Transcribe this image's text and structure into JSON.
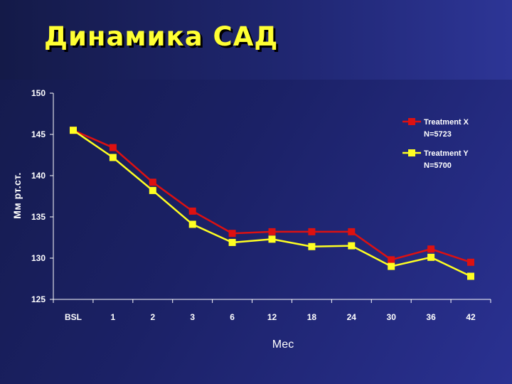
{
  "slide": {
    "title": "Динамика САД"
  },
  "chart_data": {
    "type": "line",
    "title": "",
    "xlabel": "Мес",
    "ylabel": "Мм рт.ст.",
    "categories": [
      "BSL",
      "1",
      "2",
      "3",
      "6",
      "12",
      "18",
      "24",
      "30",
      "36",
      "42"
    ],
    "ylim": [
      125,
      150
    ],
    "yticks": [
      125,
      130,
      135,
      140,
      145,
      150
    ],
    "grid": false,
    "legend_position": "top-right",
    "series": [
      {
        "name": "Treatment X",
        "n_label": "N=5723",
        "color": "#dd1111",
        "marker_color": "#dd1111",
        "values": [
          145.5,
          143.4,
          139.2,
          135.7,
          133.0,
          133.2,
          133.2,
          133.2,
          129.8,
          131.1,
          129.5
        ]
      },
      {
        "name": "Treatment Y",
        "n_label": "N=5700",
        "color": "#ffff22",
        "marker_color": "#ffff22",
        "values": [
          145.5,
          142.2,
          138.2,
          134.1,
          131.9,
          132.3,
          131.4,
          131.5,
          129.0,
          130.1,
          127.8
        ]
      }
    ]
  }
}
